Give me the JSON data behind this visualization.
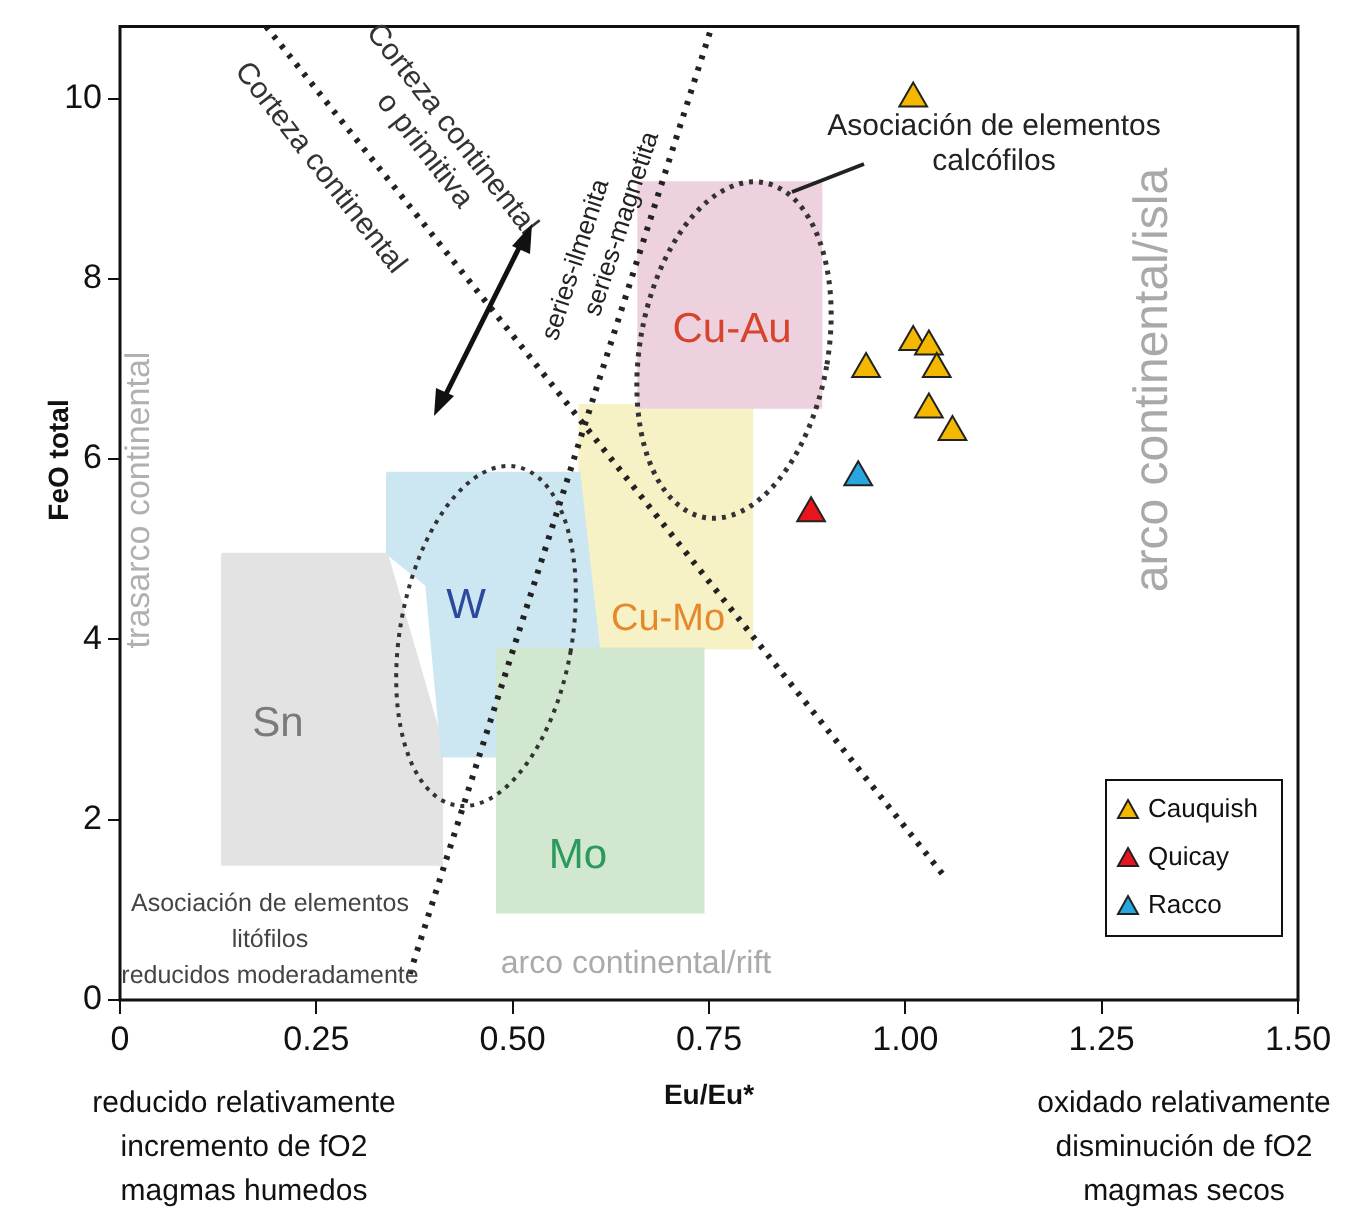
{
  "chart_data": {
    "type": "scatter",
    "xlabel": "Eu/Eu*",
    "ylabel": "FeO total",
    "xlim": [
      0,
      1.5
    ],
    "xticks": [
      0,
      {
        "value": 0.25,
        "label": "0.25"
      },
      {
        "value": 0.5,
        "label": "0.50"
      },
      {
        "value": 0.75,
        "label": "0.75"
      },
      {
        "value": 1,
        "label": "1.00"
      },
      {
        "value": 1.25,
        "label": "1.25"
      },
      {
        "value": 1.5,
        "label": "1.50"
      }
    ],
    "ylim": [
      0,
      10.8
    ],
    "yticks": [
      0,
      2,
      4,
      6,
      8,
      10
    ],
    "grid": false,
    "legend": "bottom right",
    "series": [
      {
        "type": "area",
        "color": "#e3e3e3",
        "x": [
          0.13,
          0.34,
          0.41,
          0.41,
          0.13,
          0.13
        ],
        "values": [
          4.95,
          4.95,
          2.85,
          1.5,
          1.5,
          4.95
        ]
      },
      {
        "type": "area",
        "color": "#f7f1c6",
        "x": [
          0.585,
          0.805,
          0.805,
          0.585,
          0.585
        ],
        "values": [
          6.6,
          6.6,
          3.9,
          3.9,
          6.6
        ]
      },
      {
        "type": "area",
        "color": "#cde7f2",
        "x": [
          0.34,
          0.585,
          0.61,
          0.48,
          0.41,
          0.39,
          0.34,
          0.34
        ],
        "values": [
          5.85,
          5.85,
          3.9,
          2.7,
          2.7,
          4.6,
          4.95,
          5.85
        ]
      },
      {
        "type": "area",
        "color": "#edd1df",
        "x": [
          0.66,
          0.893,
          0.893,
          0.66,
          0.66
        ],
        "values": [
          9.07,
          9.07,
          6.57,
          6.57,
          9.07
        ]
      },
      {
        "type": "area",
        "color": "#d1e7cf",
        "x": [
          0.48,
          0.743,
          0.743,
          0.48,
          0.48
        ],
        "values": [
          3.9,
          3.9,
          0.97,
          0.97,
          3.9
        ]
      },
      {
        "type": "line",
        "color": "#222222",
        "line_style": "dotted",
        "x": [
          0.186,
          1.048
        ],
        "values": [
          10.8,
          1.39
        ]
      },
      {
        "type": "line",
        "color": "#222222",
        "line_style": "dotted",
        "x": [
          0.369,
          0.751
        ],
        "values": [
          0.29,
          10.73
        ]
      },
      {
        "name": "Cauquish",
        "marker": "triangle",
        "color": "#f5b800",
        "x": [
          1.01,
          1.01,
          1.03,
          1.04,
          0.95,
          1.03,
          1.06
        ],
        "values": [
          10.0,
          7.3,
          7.25,
          7.0,
          7.0,
          6.55,
          6.3
        ]
      },
      {
        "name": "Quicay",
        "marker": "triangle",
        "color": "#e8141e",
        "x": [
          0.88
        ],
        "values": [
          5.4
        ]
      },
      {
        "name": "Racco",
        "marker": "triangle",
        "color": "#2aa6df",
        "x": [
          0.94
        ],
        "values": [
          5.8
        ]
      }
    ],
    "annotations": [
      "Corteza continental\no primitiva",
      "Corteza continental",
      "series-ilmenita",
      "series-magnetita",
      "Asociación de elementos\ncalcófilos",
      "arco continental/isla",
      "trasarco continental",
      "Asociación de elementos\nlitófilos\nreducidos moderadamente",
      "arco continental/rift",
      "reducido relativamente\nincremento de fO2\nmagmas humedos",
      "oxidado relativamente\ndisminución de fO2\nmagmas secos",
      "Sn",
      "W",
      "Cu-Au",
      "Cu-Mo",
      "Mo"
    ]
  }
}
